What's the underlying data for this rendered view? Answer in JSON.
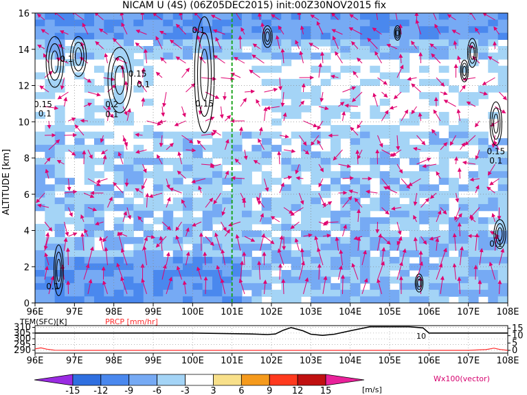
{
  "chart_data": {
    "type": "heatmap",
    "title": "NICAM U (4S) (06Z05DEC2015) init:00Z30NOV2015 fix",
    "ylabel": "ALTITUDE [km]",
    "x_ticks": [
      "96E",
      "97E",
      "98E",
      "99E",
      "100E",
      "101E",
      "102E",
      "103E",
      "104E",
      "105E",
      "106E",
      "107E",
      "108E"
    ],
    "y_ticks": [
      "0",
      "2",
      "4",
      "6",
      "8",
      "10",
      "12",
      "14",
      "16"
    ],
    "xlim": [
      96,
      108
    ],
    "ylim": [
      0,
      16
    ],
    "marker_line_lon": 101.0,
    "vector_note": "Wx100(vector)",
    "contour_labels": [
      {
        "text": "0.1",
        "lon": 96.8,
        "alt": 13.3
      },
      {
        "text": "0.15",
        "lon": 96.2,
        "alt": 10.8
      },
      {
        "text": "0.1",
        "lon": 96.25,
        "alt": 10.3
      },
      {
        "text": "0.15",
        "lon": 98.6,
        "alt": 12.5
      },
      {
        "text": "0.1",
        "lon": 98.75,
        "alt": 11.9
      },
      {
        "text": "0.2",
        "lon": 97.95,
        "alt": 10.8
      },
      {
        "text": "0.1",
        "lon": 97.95,
        "alt": 10.25
      },
      {
        "text": "0.1",
        "lon": 100.15,
        "alt": 14.9
      },
      {
        "text": "0.15",
        "lon": 100.3,
        "alt": 10.85
      },
      {
        "text": "0.15",
        "lon": 107.7,
        "alt": 8.2
      },
      {
        "text": "0.1",
        "lon": 107.7,
        "alt": 7.7
      },
      {
        "text": "0.1",
        "lon": 107.7,
        "alt": 3.1
      },
      {
        "text": "0.1",
        "lon": 96.45,
        "alt": 0.75
      }
    ],
    "lower_panel": {
      "left_label": "TEM(SFC)[K]",
      "right_label": "PRCP [mm/hr]",
      "left_ticks": [
        "310",
        "305",
        "300",
        "295",
        "290"
      ],
      "right_ticks": [
        "15",
        "10",
        "5",
        "0"
      ],
      "contour_label": "10",
      "temperature_K": {
        "lon": [
          96,
          96.5,
          97,
          98,
          99,
          100,
          101,
          101.5,
          101.9,
          102.1,
          102.3,
          102.5,
          102.8,
          103.0,
          103.3,
          103.6,
          104.0,
          104.5,
          105,
          105.5,
          105.85,
          106.0,
          106.5,
          107,
          107.5,
          108
        ],
        "values": [
          305,
          305,
          305,
          305,
          305,
          305,
          304.5,
          304.2,
          303.7,
          304.2,
          307.5,
          309.8,
          307,
          304,
          303,
          304,
          307,
          310.5,
          310.5,
          310.5,
          309.5,
          305,
          305,
          305,
          305,
          305
        ]
      },
      "precip_mm_hr": {
        "lon": [
          96,
          96.15,
          96.3,
          96.5,
          97,
          100,
          104,
          107,
          107.45,
          107.65,
          107.8,
          108
        ],
        "values": [
          1.0,
          1.7,
          0.8,
          0.1,
          0,
          0,
          0,
          0,
          0.5,
          1.5,
          0.6,
          0
        ]
      }
    },
    "colorbar": {
      "ticks": [
        "-15",
        "-12",
        "-9",
        "-6",
        "-3",
        "3",
        "6",
        "9",
        "12",
        "15"
      ],
      "units": "[m/s]",
      "colors": [
        "#9a2be2",
        "#2f6fe0",
        "#4a88ee",
        "#76aaf4",
        "#a4d4f6",
        "#ffffff",
        "#f8e08a",
        "#f59a1c",
        "#ff3a1e",
        "#c01010",
        "#e9219a"
      ]
    }
  },
  "colors": {
    "shade_dark": "#4a88ee",
    "shade_mid": "#76aaf4",
    "shade_light": "#a4d4f6",
    "vector": "#e0006f",
    "marker": "#1ea51e",
    "temperature_line": "#000000",
    "precip_line": "#ff2a2a"
  }
}
